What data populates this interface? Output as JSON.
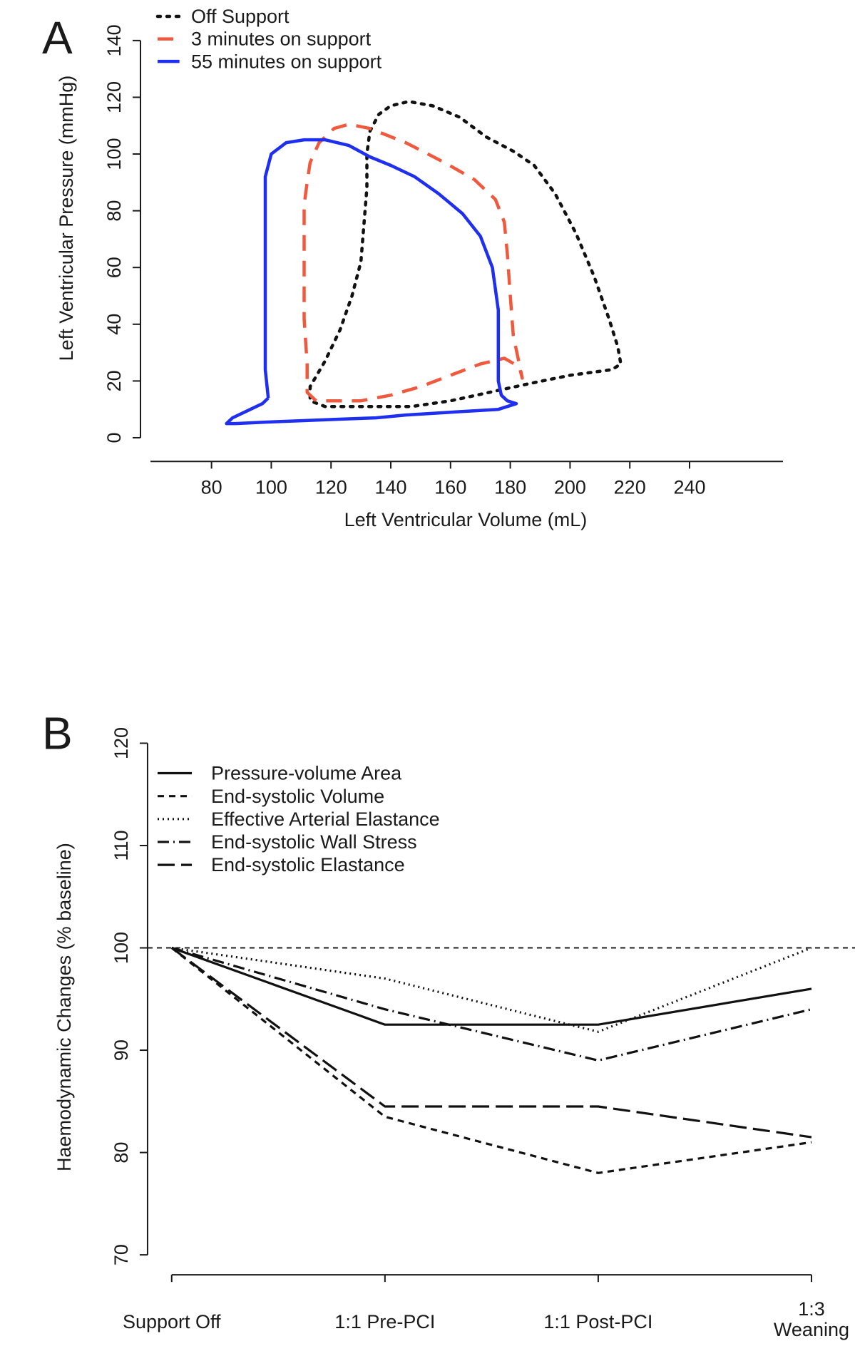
{
  "chart_data": [
    {
      "panel": "A",
      "type": "line",
      "xlabel": "Left Ventricular Volume (mL)",
      "ylabel": "Left Ventricular Pressure (mmHg)",
      "xlim": [
        80,
        240
      ],
      "ylim": [
        0,
        140
      ],
      "xticks": [
        80,
        100,
        120,
        140,
        160,
        180,
        200,
        220,
        240
      ],
      "yticks": [
        0,
        20,
        40,
        60,
        80,
        100,
        120,
        140
      ],
      "legend_position": "top-left",
      "series": [
        {
          "name": "Off Support",
          "color": "#111111",
          "style": "dotted",
          "points": [
            [
              113,
              14
            ],
            [
              113,
              18
            ],
            [
              118,
              27
            ],
            [
              123,
              38
            ],
            [
              127,
              50
            ],
            [
              130,
              62
            ],
            [
              131,
              75
            ],
            [
              132,
              88
            ],
            [
              132,
              100
            ],
            [
              133,
              108
            ],
            [
              136,
              114
            ],
            [
              140,
              117
            ],
            [
              146,
              118.5
            ],
            [
              154,
              117
            ],
            [
              163,
              113
            ],
            [
              172,
              106
            ],
            [
              181,
              101
            ],
            [
              188,
              96
            ],
            [
              195,
              86
            ],
            [
              202,
              72
            ],
            [
              208,
              57
            ],
            [
              213,
              42
            ],
            [
              216,
              32
            ],
            [
              217,
              26
            ],
            [
              214,
              24
            ],
            [
              200,
              22
            ],
            [
              186,
              19
            ],
            [
              173,
              16
            ],
            [
              160,
              13
            ],
            [
              147,
              11
            ],
            [
              133,
              11
            ],
            [
              118,
              11
            ],
            [
              113,
              13
            ]
          ]
        },
        {
          "name": "3 minutes on support",
          "color": "#f0593e",
          "style": "dashed",
          "points": [
            [
              115,
              13
            ],
            [
              112,
              16
            ],
            [
              112,
              26
            ],
            [
              111,
              42
            ],
            [
              111,
              58
            ],
            [
              111,
              72
            ],
            [
              111,
              82
            ],
            [
              112,
              90
            ],
            [
              113,
              97
            ],
            [
              116,
              104
            ],
            [
              121,
              109
            ],
            [
              126,
              110.5
            ],
            [
              133,
              109
            ],
            [
              145,
              104
            ],
            [
              158,
              97
            ],
            [
              168,
              91
            ],
            [
              175,
              84
            ],
            [
              178,
              76
            ],
            [
              179,
              65
            ],
            [
              180,
              50
            ],
            [
              181,
              36
            ],
            [
              183,
              26
            ],
            [
              184,
              21
            ],
            [
              183,
              25
            ],
            [
              178,
              28
            ],
            [
              170,
              26
            ],
            [
              160,
              22
            ],
            [
              150,
              18
            ],
            [
              140,
              15
            ],
            [
              130,
              13
            ],
            [
              120,
              13
            ],
            [
              115,
              13
            ]
          ]
        },
        {
          "name": "55 minutes on support",
          "color": "#1e2ff0",
          "style": "solid",
          "points": [
            [
              99,
              14
            ],
            [
              98,
              24
            ],
            [
              98,
              45
            ],
            [
              98,
              65
            ],
            [
              98,
              82
            ],
            [
              98,
              92
            ],
            [
              100,
              100
            ],
            [
              105,
              104
            ],
            [
              111,
              105
            ],
            [
              118,
              105
            ],
            [
              126,
              103
            ],
            [
              133,
              99
            ],
            [
              140,
              96
            ],
            [
              148,
              92
            ],
            [
              156,
              86
            ],
            [
              164,
              79
            ],
            [
              170,
              71
            ],
            [
              174,
              60
            ],
            [
              176,
              45
            ],
            [
              176,
              30
            ],
            [
              176,
              20
            ],
            [
              177,
              15
            ],
            [
              179,
              13
            ],
            [
              182,
              12
            ],
            [
              176,
              10
            ],
            [
              160,
              9
            ],
            [
              145,
              8
            ],
            [
              135,
              7
            ],
            [
              122,
              6.5
            ],
            [
              110,
              6
            ],
            [
              98,
              5.5
            ],
            [
              88,
              5
            ],
            [
              85,
              5
            ],
            [
              87,
              7
            ],
            [
              93,
              10
            ],
            [
              97,
              12
            ],
            [
              99,
              14
            ]
          ]
        }
      ]
    },
    {
      "panel": "B",
      "type": "line",
      "xlabel": "",
      "ylabel": "Haemodynamic Changes (% baseline)",
      "ylim": [
        70,
        120
      ],
      "yticks": [
        70,
        80,
        90,
        100,
        110,
        120
      ],
      "categories": [
        "Support Off",
        "1:1 Pre-PCI",
        "1:1 Post-PCI",
        "1:3\nWeaning"
      ],
      "reference_line": 100,
      "legend_position": "top-left",
      "series": [
        {
          "name": "Pressure-volume Area",
          "style": "solid",
          "values": [
            100,
            92.5,
            92.5,
            96
          ]
        },
        {
          "name": "End-systolic Volume",
          "style": "dashed",
          "values": [
            100,
            83.5,
            78,
            81
          ]
        },
        {
          "name": "Effective Arterial Elastance",
          "style": "dotted",
          "values": [
            100,
            97,
            91.8,
            100
          ]
        },
        {
          "name": "End-systolic Wall Stress",
          "style": "dashdot",
          "values": [
            100,
            94,
            89,
            94
          ]
        },
        {
          "name": "End-systolic Elastance",
          "style": "longdash",
          "values": [
            100,
            84.5,
            84.5,
            81.5
          ]
        }
      ]
    }
  ]
}
